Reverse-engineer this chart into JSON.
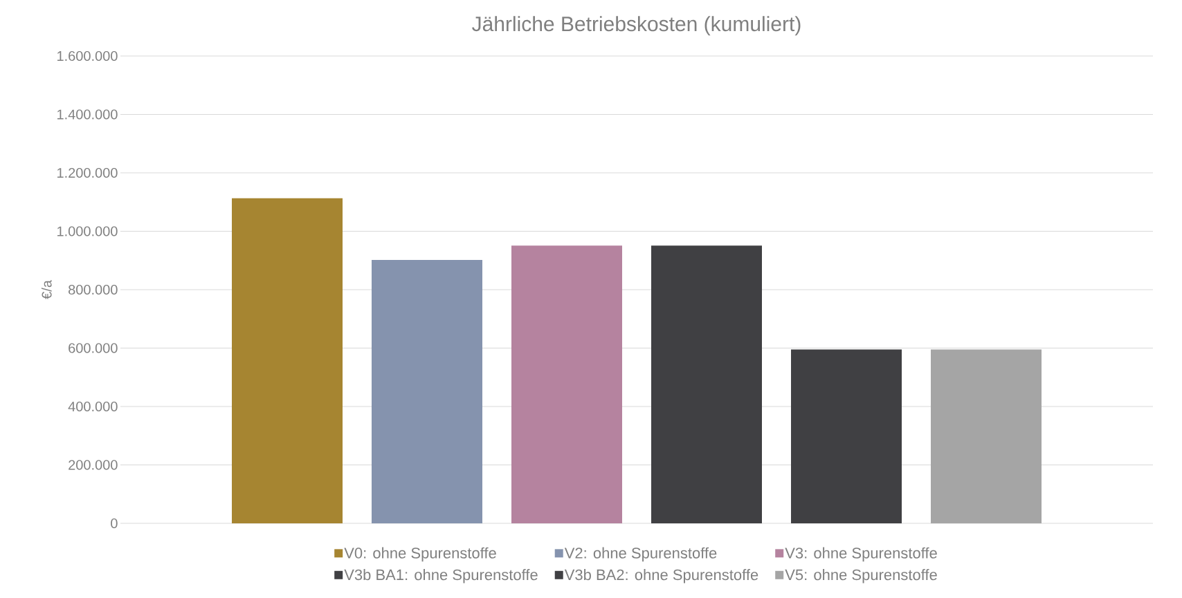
{
  "chart_data": {
    "type": "bar",
    "title": "Jährliche Betriebskosten (kumuliert)",
    "ylabel": "€/a",
    "categories": [
      null
    ],
    "series": [
      {
        "name": "V0: ohne Spurenstoffe",
        "color": "#a68531",
        "values": [
          1113000
        ]
      },
      {
        "name": "V2: ohne Spurenstoffe",
        "color": "#8593ae",
        "values": [
          902000
        ]
      },
      {
        "name": "V3: ohne Spurenstoffe",
        "color": "#b5839f",
        "values": [
          951000
        ]
      },
      {
        "name": "V3b BA1: ohne Spurenstoffe",
        "color": "#404043",
        "values": [
          951000
        ]
      },
      {
        "name": "V3b BA2: ohne Spurenstoffe",
        "color": "#404043",
        "values": [
          595000
        ]
      },
      {
        "name": "V5: ohne Spurenstoffe",
        "color": "#a5a5a5",
        "values": [
          595000
        ]
      }
    ],
    "ylim": [
      0,
      1600000
    ],
    "yticks": [
      {
        "value": 0,
        "label": "0"
      },
      {
        "value": 200000,
        "label": "200.000"
      },
      {
        "value": 400000,
        "label": "400.000"
      },
      {
        "value": 600000,
        "label": "600.000"
      },
      {
        "value": 800000,
        "label": "800.000"
      },
      {
        "value": 1000000,
        "label": "1.000.000"
      },
      {
        "value": 1200000,
        "label": "1.200.000"
      },
      {
        "value": 1400000,
        "label": "1.400.000"
      },
      {
        "value": 1600000,
        "label": "1.600.000"
      }
    ],
    "grid": "y",
    "legend": "bottom",
    "tick_labels": "y"
  }
}
